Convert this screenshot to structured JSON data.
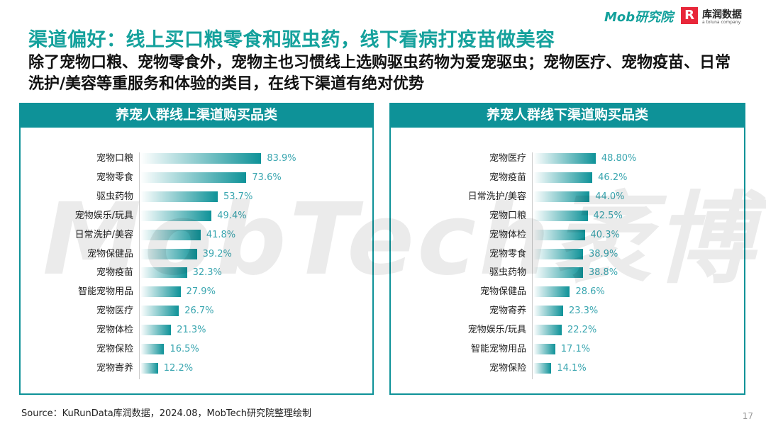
{
  "header": {
    "title": "渠道偏好：线上买口粮零食和驱虫药，线下看病打疫苗做美容",
    "subtitle": "除了宠物口粮、宠物零食外，宠物主也习惯线上选购驱虫药物为爱宠驱虫；宠物医疗、宠物疫苗、日常洗护/美容等重服务和体验的类目，在线下渠道有绝对优势",
    "logo_mob": "Mob研究院",
    "logo_kurun": "库润数据",
    "logo_kurun_sub": "a toluna company"
  },
  "watermark": "MobTech袤博",
  "chart_data": [
    {
      "type": "bar",
      "orientation": "horizontal",
      "title": "养宠人群线上渠道购买品类",
      "categories": [
        "宠物口粮",
        "宠物零食",
        "驱虫药物",
        "宠物娱乐/玩具",
        "日常洗护/美容",
        "宠物保健品",
        "宠物疫苗",
        "智能宠物用品",
        "宠物医疗",
        "宠物体检",
        "宠物保险",
        "宠物寄养"
      ],
      "values": [
        83.9,
        73.6,
        53.7,
        49.4,
        41.8,
        39.2,
        32.3,
        27.9,
        26.7,
        21.3,
        16.5,
        12.2
      ],
      "labels": [
        "83.9%",
        "73.6%",
        "53.7%",
        "49.4%",
        "41.8%",
        "39.2%",
        "32.3%",
        "27.9%",
        "26.7%",
        "21.3%",
        "16.5%",
        "12.2%"
      ],
      "xlim": [
        0,
        100
      ]
    },
    {
      "type": "bar",
      "orientation": "horizontal",
      "title": "养宠人群线下渠道购买品类",
      "categories": [
        "宠物医疗",
        "宠物疫苗",
        "日常洗护/美容",
        "宠物口粮",
        "宠物体检",
        "宠物零食",
        "驱虫药物",
        "宠物保健品",
        "宠物寄养",
        "宠物娱乐/玩具",
        "智能宠物用品",
        "宠物保险"
      ],
      "values": [
        48.8,
        46.2,
        44.0,
        42.5,
        40.3,
        38.9,
        38.8,
        28.6,
        23.3,
        22.2,
        17.1,
        14.1
      ],
      "labels": [
        "48.80%",
        "46.2%",
        "44.0%",
        "42.5%",
        "40.3%",
        "38.9%",
        "38.8%",
        "28.6%",
        "23.3%",
        "22.2%",
        "17.1%",
        "14.1%"
      ],
      "xlim": [
        0,
        55
      ]
    }
  ],
  "footer": {
    "source": "Source：KuRunData库润数据，2024.08，MobTech研究院整理绘制",
    "page": "17"
  },
  "colors": {
    "accent": "#0e9298",
    "title": "#14a19c",
    "value": "#3aa6b0"
  }
}
